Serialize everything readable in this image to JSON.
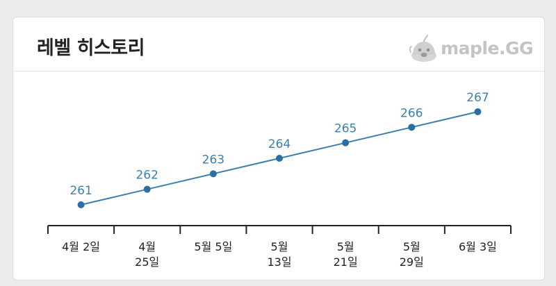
{
  "header": {
    "title": "레벨 히스토리",
    "brand": "maple.GG"
  },
  "icons": {
    "brand_logo": "slime-mascot-icon"
  },
  "colors": {
    "line": "#3a7fae",
    "point": "#2a6fa3",
    "label": "#3a7fae",
    "axis": "#222222",
    "brand": "#c4c4c4"
  },
  "chart_data": {
    "type": "line",
    "title": "레벨 히스토리",
    "categories": [
      [
        "4월 2일"
      ],
      [
        "4월",
        "25일"
      ],
      [
        "5월 5일"
      ],
      [
        "5월",
        "13일"
      ],
      [
        "5월",
        "21일"
      ],
      [
        "5월",
        "29일"
      ],
      [
        "6월 3일"
      ]
    ],
    "series": [
      {
        "values": [
          261,
          262,
          263,
          264,
          265,
          266,
          267
        ]
      }
    ],
    "ylim": [
      261,
      267
    ],
    "grid": false,
    "legend": "none",
    "data_labels": true
  }
}
